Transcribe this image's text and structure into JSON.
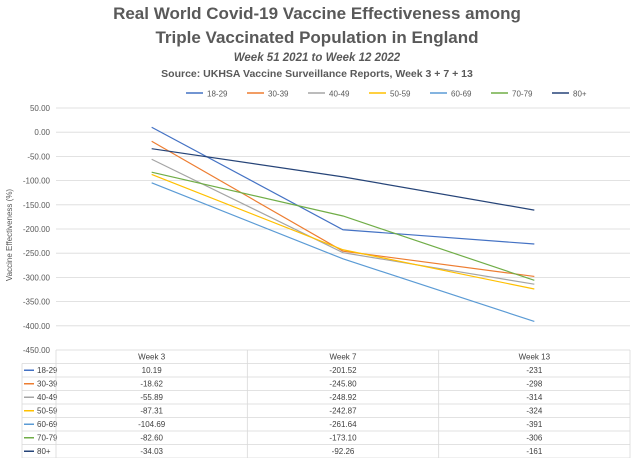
{
  "chart_data": {
    "type": "line",
    "title": "Real World Covid-19 Vaccine Effectiveness among",
    "title_line2": "Triple Vaccinated Population in England",
    "subtitle": "Week 51 2021 to Week 12 2022",
    "source": "Source: UKHSA Vaccine Surveillance Reports, Week 3 + 7 + 13",
    "ylabel": "Vaccine Effectiveness (%)",
    "xlabel": "",
    "ylim": [
      -450,
      50
    ],
    "yticks": [
      "50.00",
      "0.00",
      "-50.00",
      "-100.00",
      "-150.00",
      "-200.00",
      "-250.00",
      "-300.00",
      "-350.00",
      "-400.00",
      "-450.00"
    ],
    "ytick_values": [
      50,
      0,
      -50,
      -100,
      -150,
      -200,
      -250,
      -300,
      -350,
      -400,
      -450
    ],
    "categories": [
      "Week 3",
      "Week 7",
      "Week 13"
    ],
    "legend_position": "top",
    "grid": true,
    "series": [
      {
        "name": "18-29",
        "color": "#4472C4",
        "values": [
          10.19,
          -201.52,
          -231
        ],
        "labels": [
          "10.19",
          "-201.52",
          "-231"
        ]
      },
      {
        "name": "30-39",
        "color": "#ED7D31",
        "values": [
          -18.62,
          -245.8,
          -298
        ],
        "labels": [
          "-18.62",
          "-245.80",
          "-298"
        ]
      },
      {
        "name": "40-49",
        "color": "#A5A5A5",
        "values": [
          -55.89,
          -248.92,
          -314
        ],
        "labels": [
          "-55.89",
          "-248.92",
          "-314"
        ]
      },
      {
        "name": "50-59",
        "color": "#FFC000",
        "values": [
          -87.31,
          -242.87,
          -324
        ],
        "labels": [
          "-87.31",
          "-242.87",
          "-324"
        ]
      },
      {
        "name": "60-69",
        "color": "#5B9BD5",
        "values": [
          -104.69,
          -261.64,
          -391
        ],
        "labels": [
          "-104.69",
          "-261.64",
          "-391"
        ]
      },
      {
        "name": "70-79",
        "color": "#70AD47",
        "values": [
          -82.6,
          -173.1,
          -306
        ],
        "labels": [
          "-82.60",
          "-173.10",
          "-306"
        ]
      },
      {
        "name": "80+",
        "color": "#264478",
        "values": [
          -34.03,
          -92.26,
          -161
        ],
        "labels": [
          "-34.03",
          "-92.26",
          "-161"
        ]
      }
    ]
  }
}
